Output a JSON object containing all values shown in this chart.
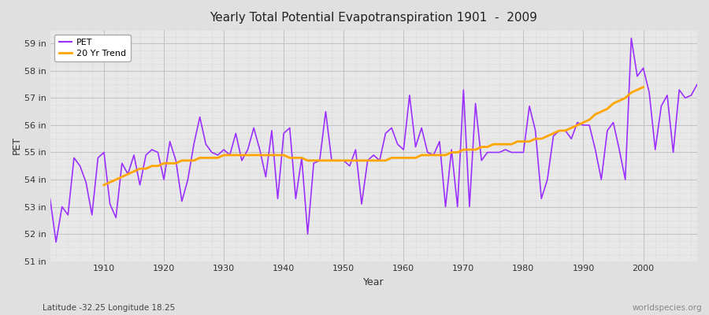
{
  "title": "Yearly Total Potential Evapotranspiration 1901  -  2009",
  "ylabel": "PET",
  "xlabel": "Year",
  "bottom_left_label": "Latitude -32.25 Longitude 18.25",
  "bottom_right_label": "worldspecies.org",
  "pet_color": "#9B30FF",
  "trend_color": "#FFA500",
  "fig_bg_color": "#E0E0E0",
  "plot_bg_color": "#E8E8E8",
  "ylim": [
    51.0,
    59.5
  ],
  "xlim": [
    1901,
    2009
  ],
  "yticks": [
    51,
    52,
    53,
    54,
    55,
    56,
    57,
    58,
    59
  ],
  "ytick_labels": [
    "51 in",
    "52 in",
    "53 in",
    "54 in",
    "55 in",
    "56 in",
    "57 in",
    "58 in",
    "59 in"
  ],
  "xticks": [
    1910,
    1920,
    1930,
    1940,
    1950,
    1960,
    1970,
    1980,
    1990,
    2000
  ],
  "years": [
    1901,
    1902,
    1903,
    1904,
    1905,
    1906,
    1907,
    1908,
    1909,
    1910,
    1911,
    1912,
    1913,
    1914,
    1915,
    1916,
    1917,
    1918,
    1919,
    1920,
    1921,
    1922,
    1923,
    1924,
    1925,
    1926,
    1927,
    1928,
    1929,
    1930,
    1931,
    1932,
    1933,
    1934,
    1935,
    1936,
    1937,
    1938,
    1939,
    1940,
    1941,
    1942,
    1943,
    1944,
    1945,
    1946,
    1947,
    1948,
    1949,
    1950,
    1951,
    1952,
    1953,
    1954,
    1955,
    1956,
    1957,
    1958,
    1959,
    1960,
    1961,
    1962,
    1963,
    1964,
    1965,
    1966,
    1967,
    1968,
    1969,
    1970,
    1971,
    1972,
    1973,
    1974,
    1975,
    1976,
    1977,
    1978,
    1979,
    1980,
    1981,
    1982,
    1983,
    1984,
    1985,
    1986,
    1987,
    1988,
    1989,
    1990,
    1991,
    1992,
    1993,
    1994,
    1995,
    1996,
    1997,
    1998,
    1999,
    2000,
    2001,
    2002,
    2003,
    2004,
    2005,
    2006,
    2007,
    2008,
    2009
  ],
  "pet_values": [
    53.3,
    51.7,
    53.0,
    52.7,
    54.8,
    54.5,
    53.9,
    52.7,
    54.8,
    55.0,
    53.1,
    52.6,
    54.6,
    54.2,
    54.9,
    53.8,
    54.9,
    55.1,
    55.0,
    54.0,
    55.4,
    54.7,
    53.2,
    54.0,
    55.3,
    56.3,
    55.3,
    55.0,
    54.9,
    55.1,
    54.9,
    55.7,
    54.7,
    55.1,
    55.9,
    55.1,
    54.1,
    55.8,
    53.3,
    55.7,
    55.9,
    53.3,
    54.8,
    52.0,
    54.6,
    54.7,
    56.5,
    54.7,
    54.7,
    54.7,
    54.5,
    55.1,
    53.1,
    54.7,
    54.9,
    54.7,
    55.7,
    55.9,
    55.3,
    55.1,
    57.1,
    55.2,
    55.9,
    55.0,
    54.9,
    55.4,
    53.0,
    55.1,
    53.0,
    57.3,
    53.0,
    56.8,
    54.7,
    55.0,
    55.0,
    55.0,
    55.1,
    55.0,
    55.0,
    55.0,
    56.7,
    55.8,
    53.3,
    54.0,
    55.6,
    55.8,
    55.8,
    55.5,
    56.1,
    56.0,
    56.0,
    55.1,
    54.0,
    55.8,
    56.1,
    55.1,
    54.0,
    59.2,
    57.8,
    58.1,
    57.2,
    55.1,
    56.7,
    57.1,
    55.0,
    57.3,
    57.0,
    57.1,
    57.5
  ],
  "trend_values": [
    null,
    null,
    null,
    null,
    null,
    null,
    null,
    null,
    null,
    53.8,
    53.9,
    54.0,
    54.1,
    54.2,
    54.3,
    54.4,
    54.4,
    54.5,
    54.5,
    54.6,
    54.6,
    54.6,
    54.7,
    54.7,
    54.7,
    54.8,
    54.8,
    54.8,
    54.8,
    54.9,
    54.9,
    54.9,
    54.9,
    54.9,
    54.9,
    54.9,
    54.9,
    54.9,
    54.9,
    54.9,
    54.8,
    54.8,
    54.8,
    54.7,
    54.7,
    54.7,
    54.7,
    54.7,
    54.7,
    54.7,
    54.7,
    54.7,
    54.7,
    54.7,
    54.7,
    54.7,
    54.7,
    54.8,
    54.8,
    54.8,
    54.8,
    54.8,
    54.9,
    54.9,
    54.9,
    54.9,
    54.9,
    55.0,
    55.0,
    55.1,
    55.1,
    55.1,
    55.2,
    55.2,
    55.3,
    55.3,
    55.3,
    55.3,
    55.4,
    55.4,
    55.4,
    55.5,
    55.5,
    55.6,
    55.7,
    55.8,
    55.8,
    55.9,
    56.0,
    56.1,
    56.2,
    56.4,
    56.5,
    56.6,
    56.8,
    56.9,
    57.0,
    57.2,
    57.3,
    57.4,
    null,
    null,
    null,
    null,
    null,
    null,
    null,
    null,
    null
  ]
}
